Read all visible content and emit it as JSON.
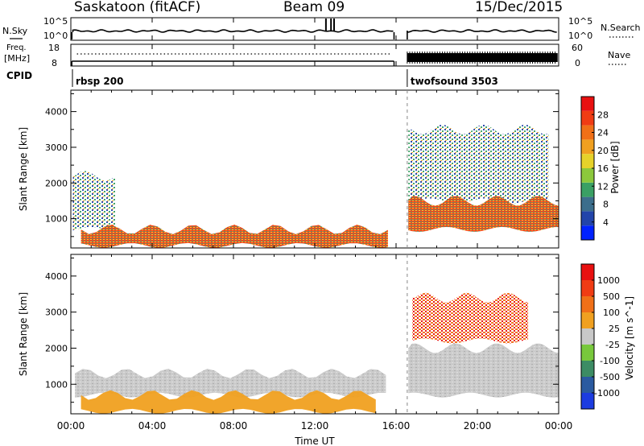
{
  "header": {
    "station": "Saskatoon (fitACF)",
    "beam": "Beam 09",
    "date": "15/Dec/2015"
  },
  "summary_panels": {
    "nsky_label": "N.Sky",
    "nsky_ticks": [
      "10^5",
      "10^0"
    ],
    "nsearch_label": "N.Search",
    "nsearch_ticks": [
      "10^5",
      "10^0"
    ],
    "freq_label_line1": "Freq.",
    "freq_label_line2": "[MHz]",
    "freq_ticks": [
      "18",
      "8"
    ],
    "nave_label": "Nave",
    "nave_ticks": [
      "60",
      "0"
    ],
    "cpid_label": "CPID",
    "cpid_segments": [
      {
        "label": "rbsp 200",
        "start_hour": 0.0,
        "end_hour": 15.9
      },
      {
        "label": "twofsound 3503",
        "start_hour": 16.55,
        "end_hour": 24.0
      }
    ]
  },
  "time_axis": {
    "title": "Time UT",
    "ticks": [
      "00:00",
      "04:00",
      "08:00",
      "12:00",
      "16:00",
      "20:00",
      "00:00"
    ],
    "range_hours": [
      0,
      24
    ],
    "data_gap_hours": [
      15.9,
      16.55
    ]
  },
  "chart_data": [
    {
      "type": "heatmap",
      "panel": "power",
      "ylabel": "Slant Range [km]",
      "ylim": [
        180,
        4600
      ],
      "yticks": [
        1000,
        2000,
        3000,
        4000
      ],
      "colorbar": {
        "label": "Power [dB]",
        "ticks": [
          "28",
          "24",
          "20",
          "16",
          "12",
          "8",
          "4"
        ],
        "range": [
          0,
          30
        ],
        "colors": [
          "#0022ff",
          "#2244aa",
          "#3c6e8c",
          "#3aa064",
          "#8cc83c",
          "#e6d22a",
          "#f0a020",
          "#f07018",
          "#f03c14",
          "#e81010"
        ]
      },
      "features": [
        {
          "name": "near-range echoes",
          "hours": [
            0.5,
            15.6
          ],
          "range_km": [
            250,
            700
          ],
          "power_db": 24
        },
        {
          "name": "arc echo",
          "hours": [
            0.1,
            2.2
          ],
          "range_km": [
            700,
            2200
          ],
          "power_db": 12
        },
        {
          "name": "mid-range band",
          "hours": [
            16.6,
            24.0
          ],
          "range_km": [
            700,
            1500
          ],
          "power_db": 26
        },
        {
          "name": "far-range scatter",
          "hours": [
            16.6,
            23.5
          ],
          "range_km": [
            1500,
            3500
          ],
          "power_db": 10
        }
      ]
    },
    {
      "type": "heatmap",
      "panel": "velocity",
      "ylabel": "Slant Range [km]",
      "ylim": [
        180,
        4600
      ],
      "yticks": [
        1000,
        2000,
        3000,
        4000
      ],
      "colorbar": {
        "label": "Velocity [m s^-1]",
        "ticks": [
          "1000",
          "500",
          "100",
          "25",
          "-25",
          "-100",
          "-500",
          "-1000"
        ],
        "colors": [
          "#1c3ce0",
          "#2a5aa0",
          "#3c8c64",
          "#78c83c",
          "#c8c8c8",
          "#f0a020",
          "#f07018",
          "#f03c14",
          "#e81010"
        ]
      },
      "features": [
        {
          "name": "near-range flow",
          "hours": [
            0.5,
            15.0
          ],
          "range_km": [
            250,
            700
          ],
          "velocity": -100
        },
        {
          "name": "ground scatter band",
          "hours": [
            0.2,
            15.5
          ],
          "range_km": [
            700,
            1300
          ],
          "velocity": 0
        },
        {
          "name": "ground scatter band",
          "hours": [
            16.6,
            24.0
          ],
          "range_km": [
            700,
            2000
          ],
          "velocity": 0
        },
        {
          "name": "far-range away flow",
          "hours": [
            16.8,
            22.5
          ],
          "range_km": [
            2200,
            3400
          ],
          "velocity": -300
        }
      ]
    }
  ]
}
